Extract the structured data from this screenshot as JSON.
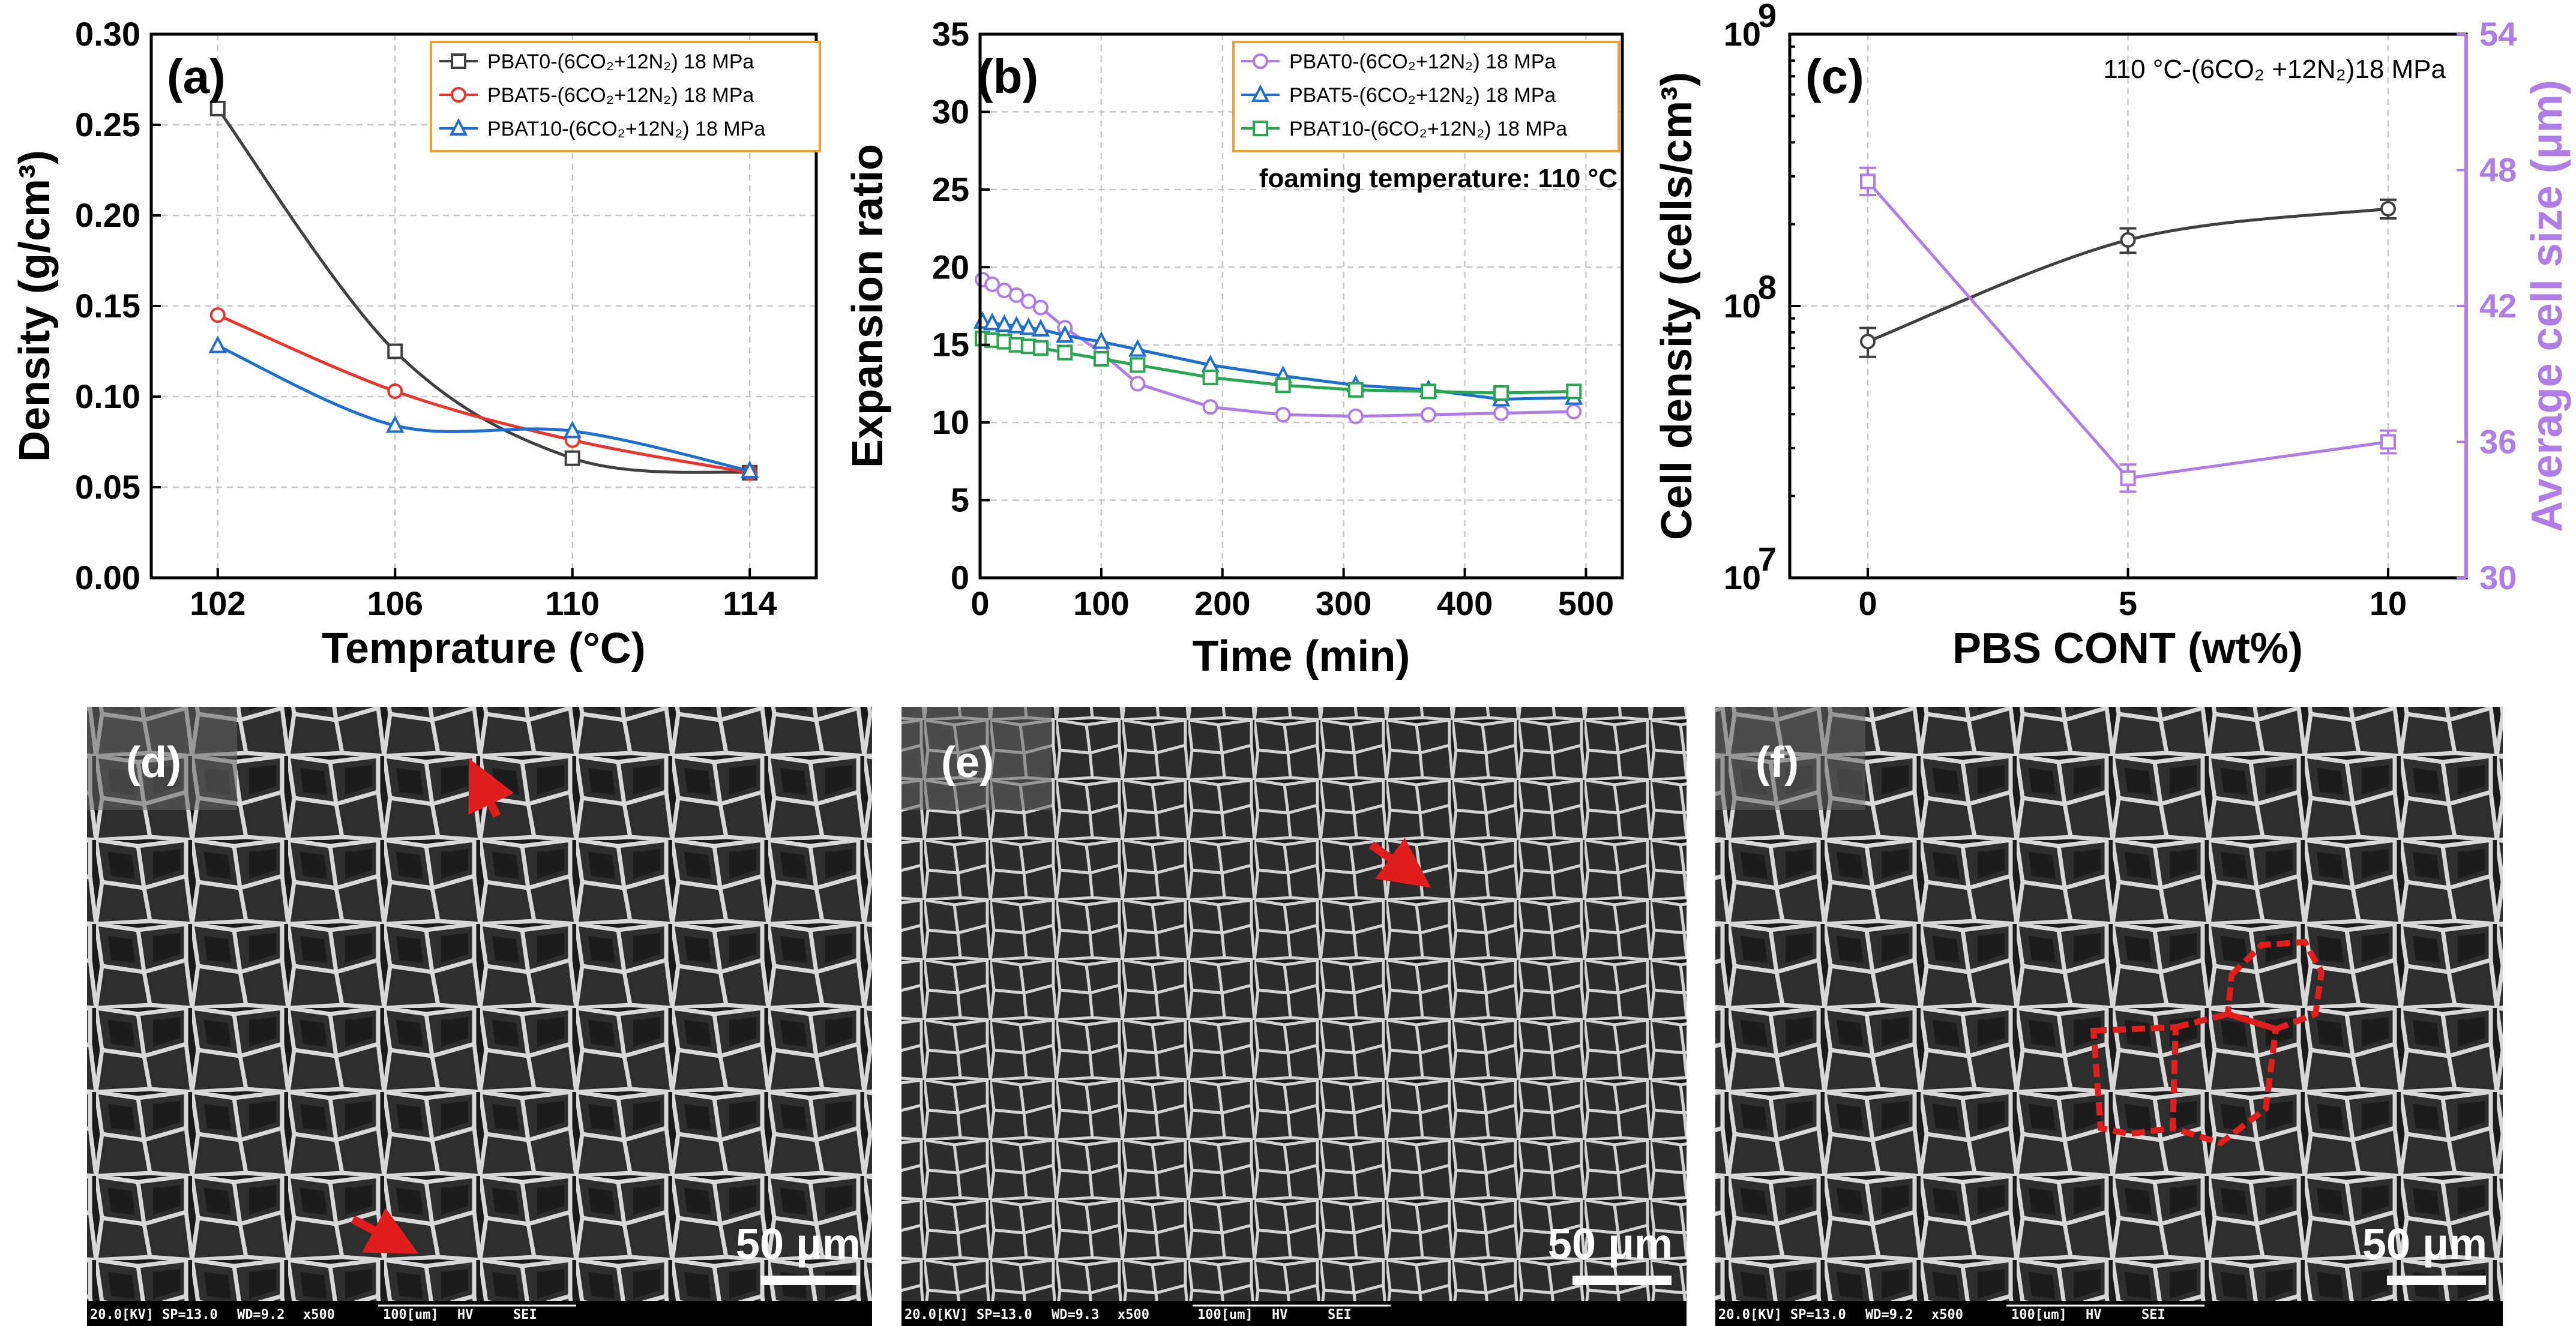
{
  "chart_data": [
    {
      "id": "a",
      "type": "line",
      "panel_label": "(a)",
      "xlabel": "Temprature (°C)",
      "ylabel": "Density (g/cm³)",
      "xlim": [
        100.5,
        115.5
      ],
      "ylim": [
        0,
        0.3
      ],
      "xticks": [
        102,
        106,
        110,
        114
      ],
      "xtick_labels": [
        "102",
        "106",
        "110",
        "114"
      ],
      "yticks": [
        0,
        0.05,
        0.1,
        0.15,
        0.2,
        0.25,
        0.3
      ],
      "ytick_labels": [
        "0.00",
        "0.05",
        "0.10",
        "0.15",
        "0.20",
        "0.25",
        "0.30"
      ],
      "grid": true,
      "legend_position": "top-right",
      "series": [
        {
          "name": "PBAT0-(6CO₂+12N₂) 18 MPa",
          "color": "#404040",
          "marker": "square",
          "x": [
            102,
            106,
            110,
            114
          ],
          "values": [
            0.259,
            0.125,
            0.066,
            0.058
          ]
        },
        {
          "name": "PBAT5-(6CO₂+12N₂) 18 MPa",
          "color": "#e8352e",
          "marker": "circle",
          "x": [
            102,
            106,
            110,
            114
          ],
          "values": [
            0.145,
            0.103,
            0.076,
            0.058
          ]
        },
        {
          "name": "PBAT10-(6CO₂+12N₂) 18 MPa",
          "color": "#1f6fd1",
          "marker": "triangle",
          "x": [
            102,
            106,
            110,
            114
          ],
          "values": [
            0.128,
            0.084,
            0.081,
            0.059
          ]
        }
      ]
    },
    {
      "id": "b",
      "type": "line",
      "panel_label": "(b)",
      "xlabel": "Time (min)",
      "ylabel": "Expansion ratio",
      "annotation": "foaming temperature: 110 °C",
      "xlim": [
        0,
        530
      ],
      "ylim": [
        0,
        35
      ],
      "xticks": [
        0,
        100,
        200,
        300,
        400,
        500
      ],
      "xtick_labels": [
        "0",
        "100",
        "200",
        "300",
        "400",
        "500"
      ],
      "yticks": [
        0,
        5,
        10,
        15,
        20,
        25,
        30,
        35
      ],
      "ytick_labels": [
        "0",
        "5",
        "10",
        "15",
        "20",
        "25",
        "30",
        "35"
      ],
      "grid": true,
      "legend_position": "top-right",
      "series": [
        {
          "name": "PBAT0-(6CO₂+12N₂) 18 MPa",
          "color": "#b07ce6",
          "marker": "circle",
          "x": [
            2,
            10,
            20,
            30,
            40,
            50,
            70,
            100,
            130,
            190,
            250,
            310,
            370,
            430,
            490
          ],
          "values": [
            19.2,
            18.9,
            18.5,
            18.2,
            17.8,
            17.4,
            16.1,
            14.5,
            12.5,
            11.0,
            10.5,
            10.4,
            10.5,
            10.6,
            10.7
          ]
        },
        {
          "name": "PBAT5-(6CO₂+12N₂) 18 MPa",
          "color": "#1f6fd1",
          "marker": "triangle",
          "x": [
            2,
            10,
            20,
            30,
            40,
            50,
            70,
            100,
            130,
            190,
            250,
            310,
            370,
            430,
            490
          ],
          "values": [
            16.5,
            16.4,
            16.3,
            16.2,
            16.1,
            16.0,
            15.6,
            15.2,
            14.7,
            13.7,
            13.0,
            12.4,
            12.1,
            11.5,
            11.6
          ]
        },
        {
          "name": "PBAT10-(6CO₂+12N₂) 18 MPa",
          "color": "#29a64f",
          "marker": "square",
          "x": [
            2,
            10,
            20,
            30,
            40,
            50,
            70,
            100,
            130,
            190,
            250,
            310,
            370,
            430,
            490
          ],
          "values": [
            15.4,
            15.3,
            15.2,
            15.0,
            14.9,
            14.8,
            14.5,
            14.1,
            13.7,
            12.9,
            12.4,
            12.1,
            12.0,
            11.9,
            12.0
          ]
        }
      ]
    },
    {
      "id": "c",
      "type": "line",
      "panel_label": "(c)",
      "xlabel": "PBS CONT (wt%)",
      "ylabel": "Cell density (cells/cm³)",
      "y2label": "Average cell size (μm)",
      "annotation": "110 °C-(6CO₂ +12N₂)18 MPa",
      "xlim": [
        -1.5,
        11.5
      ],
      "ylim_log10": [
        7,
        9
      ],
      "y2lim": [
        30,
        54
      ],
      "xticks": [
        0,
        5,
        10
      ],
      "xtick_labels": [
        "0",
        "5",
        "10"
      ],
      "yticks_log10": [
        7,
        8,
        9
      ],
      "ytick_labels": [
        "10",
        "10",
        "10"
      ],
      "ytick_exponents": [
        "7",
        "8",
        "9"
      ],
      "y2ticks": [
        30,
        36,
        42,
        48,
        54
      ],
      "y2tick_labels": [
        "30",
        "36",
        "42",
        "48",
        "54"
      ],
      "grid": true,
      "series": [
        {
          "name": "Cell density",
          "axis": "left",
          "color": "#404040",
          "marker": "circle",
          "x": [
            0,
            5,
            10
          ],
          "values": [
            74000000.0,
            175000000.0,
            228000000.0
          ],
          "errors": [
            9000000.0,
            18000000.0,
            18000000.0
          ]
        },
        {
          "name": "Average cell size",
          "axis": "right",
          "color": "#b07ce6",
          "marker": "square",
          "x": [
            0,
            5,
            10
          ],
          "values": [
            47.5,
            34.4,
            36.0
          ],
          "errors": [
            0.6,
            0.6,
            0.5
          ]
        }
      ]
    }
  ],
  "sem_panels": [
    {
      "label": "(d)",
      "scale_bar": "50 μm",
      "info": [
        "20.0[KV]",
        "SP=13.0",
        "WD=9.2",
        "x500",
        "100[um]",
        "HV",
        "SEI"
      ]
    },
    {
      "label": "(e)",
      "scale_bar": "50 μm",
      "info": [
        "20.0[KV]",
        "SP=13.0",
        "WD=9.3",
        "x500",
        "100[um]",
        "HV",
        "SEI"
      ]
    },
    {
      "label": "(f)",
      "scale_bar": "50 μm",
      "info": [
        "20.0[KV]",
        "SP=13.0",
        "WD=9.2",
        "x500",
        "100[um]",
        "HV",
        "SEI"
      ]
    }
  ],
  "colors": {
    "arrow": "#e01e1e",
    "outline": "#e01e1e",
    "legend_border": "#f0a030",
    "secondary_axis": "#b07ce6"
  }
}
